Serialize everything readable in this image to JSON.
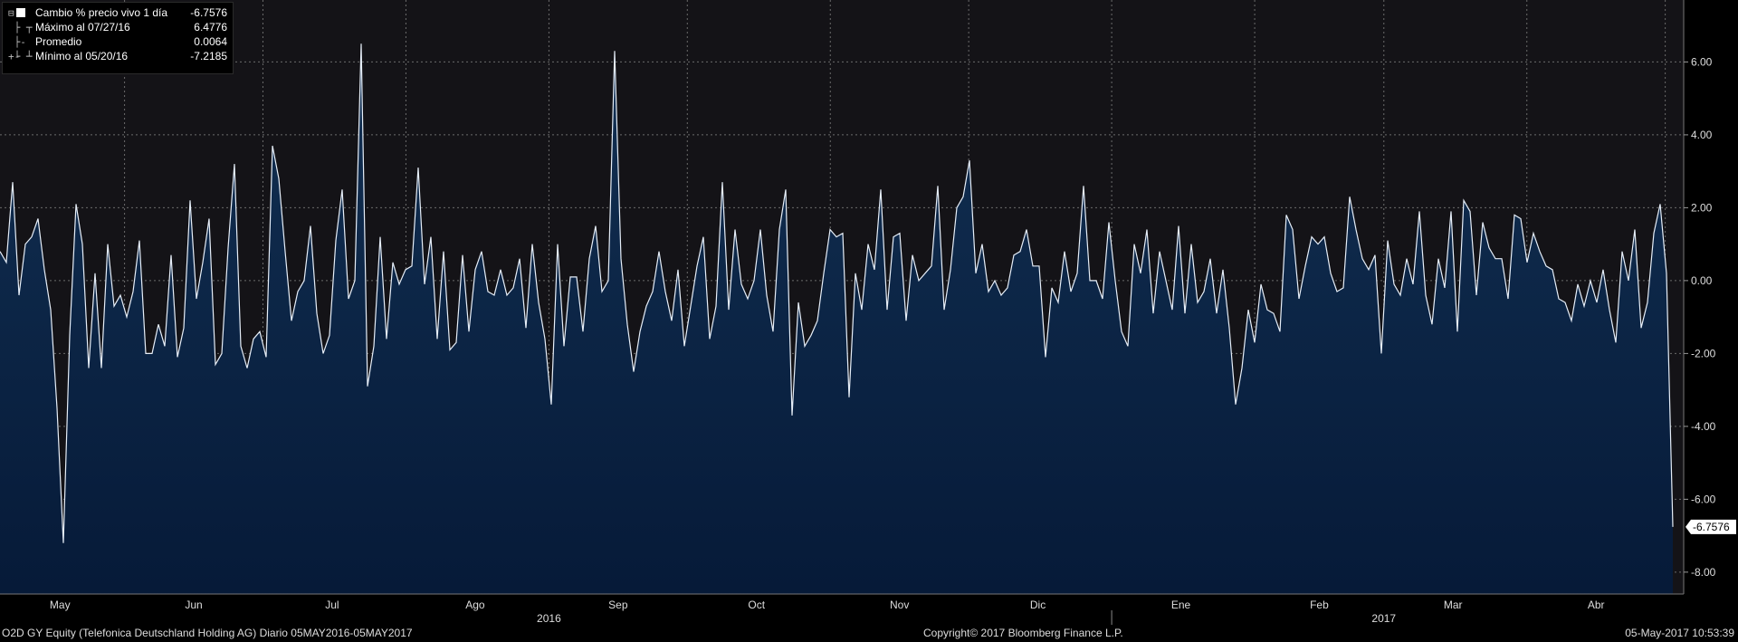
{
  "legend": {
    "items": [
      {
        "label": "Cambio % precio vivo 1 día",
        "value": "-6.7576"
      },
      {
        "label": "Máximo al 07/27/16",
        "value": "6.4776"
      },
      {
        "label": "Promedio",
        "value": "0.0064"
      },
      {
        "label": "Mínimo al 05/20/16",
        "value": "-7.2185"
      }
    ]
  },
  "footer": {
    "left": "O2D GY Equity (Telefonica Deutschland Holding AG)  Diario 05MAY2016-05MAY2017",
    "center": "Copyright© 2017 Bloomberg Finance L.P.",
    "right": "05-May-2017 10:53:39"
  },
  "colors": {
    "background_upper": "#141317",
    "area_fill_top": "#123053",
    "area_fill_bottom": "#061a38",
    "line": "#e6eef8",
    "grid": "#6b6b6b",
    "tag_bg": "#ffffff",
    "tag_text": "#000000"
  },
  "chart_data": {
    "type": "area",
    "title": "",
    "ylabel": "",
    "ylim": [
      -8.6,
      7.7
    ],
    "yticks": [
      6,
      4,
      2,
      0,
      -2,
      -4,
      -6,
      -8
    ],
    "ytick_labels": [
      "6.00",
      "4.00",
      "2.00",
      "0.00",
      "-2.00",
      "-4.00",
      "-6.00",
      "-8.00"
    ],
    "x_start": "2016-05-05",
    "x_end": "2017-05-05",
    "month_labels": [
      {
        "label": "May",
        "date": "2016-05-18"
      },
      {
        "label": "Jun",
        "date": "2016-06-16"
      },
      {
        "label": "Jul",
        "date": "2016-07-16"
      },
      {
        "label": "Ago",
        "date": "2016-08-16"
      },
      {
        "label": "Sep",
        "date": "2016-09-16"
      },
      {
        "label": "Oct",
        "date": "2016-10-16"
      },
      {
        "label": "Nov",
        "date": "2016-11-16"
      },
      {
        "label": "Dic",
        "date": "2016-12-16"
      },
      {
        "label": "Ene",
        "date": "2017-01-16"
      },
      {
        "label": "Feb",
        "date": "2017-02-15"
      },
      {
        "label": "Mar",
        "date": "2017-03-16"
      },
      {
        "label": "Abr",
        "date": "2017-04-16"
      }
    ],
    "month_grid_dates": [
      "2016-06-01",
      "2016-07-01",
      "2016-08-01",
      "2016-09-01",
      "2016-10-01",
      "2016-11-01",
      "2016-12-01",
      "2017-01-01",
      "2017-02-01",
      "2017-03-01",
      "2017-04-01",
      "2017-05-01"
    ],
    "year_labels": [
      {
        "label": "2016",
        "date": "2016-09-01"
      },
      {
        "label": "2017",
        "date": "2017-03-01"
      }
    ],
    "year_divider_date": "2017-01-01",
    "last_value_tag": "-6.7576",
    "series": [
      {
        "name": "Cambio % precio vivo 1 día",
        "values": [
          0.8,
          0.5,
          2.7,
          -0.4,
          1.0,
          1.2,
          1.7,
          0.3,
          -0.8,
          -3.5,
          -7.2,
          -1.5,
          2.1,
          1.0,
          -2.4,
          0.2,
          -2.4,
          1.0,
          -0.7,
          -0.4,
          -1.0,
          -0.3,
          1.1,
          -2.0,
          -2.0,
          -1.2,
          -1.8,
          0.7,
          -2.1,
          -1.3,
          2.2,
          -0.5,
          0.5,
          1.7,
          -2.3,
          -2.0,
          0.9,
          3.2,
          -1.8,
          -2.4,
          -1.6,
          -1.4,
          -2.1,
          3.7,
          2.8,
          0.8,
          -1.1,
          -0.3,
          0.0,
          1.5,
          -0.9,
          -2.0,
          -1.5,
          1.1,
          2.5,
          -0.5,
          0.0,
          6.5,
          -2.9,
          -1.8,
          1.2,
          -1.6,
          0.5,
          -0.1,
          0.3,
          0.4,
          3.1,
          -0.1,
          1.2,
          -1.6,
          0.8,
          -1.9,
          -1.7,
          0.7,
          -1.4,
          0.3,
          0.8,
          -0.3,
          -0.4,
          0.3,
          -0.4,
          -0.2,
          0.6,
          -1.3,
          1.0,
          -0.6,
          -1.6,
          -3.4,
          1.0,
          -1.8,
          0.1,
          0.1,
          -1.4,
          0.6,
          1.5,
          -0.3,
          0.0,
          6.3,
          0.6,
          -1.2,
          -2.5,
          -1.4,
          -0.7,
          -0.3,
          0.8,
          -0.3,
          -1.1,
          0.3,
          -1.8,
          -0.7,
          0.4,
          1.2,
          -1.6,
          -0.7,
          2.7,
          -0.8,
          1.4,
          -0.1,
          -0.5,
          0.0,
          1.4,
          -0.4,
          -1.4,
          1.4,
          2.5,
          -3.7,
          -0.6,
          -1.8,
          -1.5,
          -1.1,
          0.2,
          1.4,
          1.2,
          1.3,
          -3.2,
          0.2,
          -0.8,
          1.0,
          0.3,
          2.5,
          -0.8,
          1.2,
          1.3,
          -1.1,
          0.7,
          0.0,
          0.2,
          0.4,
          2.6,
          -0.8,
          0.3,
          2.0,
          2.3,
          3.3,
          0.2,
          1.0,
          -0.3,
          0.0,
          -0.4,
          -0.2,
          0.7,
          0.8,
          1.4,
          0.4,
          0.4,
          -2.1,
          -0.2,
          -0.6,
          0.8,
          -0.3,
          0.2,
          2.6,
          0.0,
          0.0,
          -0.5,
          1.6,
          0.0,
          -1.4,
          -1.8,
          1.0,
          0.2,
          1.4,
          -0.9,
          0.8,
          0.0,
          -0.8,
          1.5,
          -0.9,
          1.0,
          -0.6,
          -0.3,
          0.6,
          -0.9,
          0.3,
          -1.3,
          -3.4,
          -2.4,
          -0.8,
          -1.7,
          -0.1,
          -0.8,
          -0.9,
          -1.4,
          1.8,
          1.4,
          -0.5,
          0.4,
          1.2,
          1.0,
          1.2,
          0.2,
          -0.3,
          -0.2,
          2.3,
          1.4,
          0.6,
          0.3,
          0.7,
          -2.0,
          1.1,
          -0.1,
          -0.4,
          0.6,
          -0.1,
          1.9,
          -0.4,
          -1.2,
          0.6,
          -0.2,
          1.9,
          -1.4,
          2.2,
          1.9,
          -0.4,
          1.6,
          0.9,
          0.6,
          0.6,
          -0.5,
          1.8,
          1.7,
          0.5,
          1.3,
          0.8,
          0.4,
          0.3,
          -0.5,
          -0.6,
          -1.1,
          -0.1,
          -0.7,
          0.0,
          -0.6,
          0.3,
          -0.8,
          -1.7,
          0.8,
          0.0,
          1.4,
          -1.3,
          -0.6,
          1.3,
          2.1,
          0.2,
          -6.7576
        ]
      }
    ]
  }
}
